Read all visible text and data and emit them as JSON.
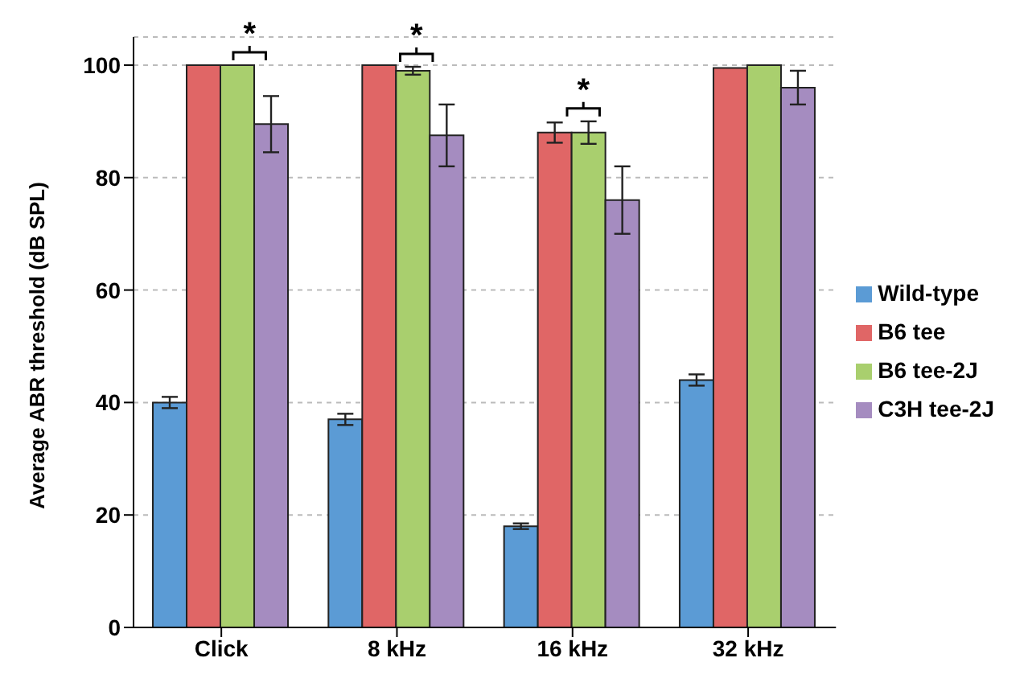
{
  "chart_data": {
    "type": "bar",
    "ylabel": "Average ABR threshold (dB SPL)",
    "categories": [
      "Click",
      "8 kHz",
      "16 kHz",
      "32 kHz"
    ],
    "series": [
      {
        "name": "Wild-type",
        "color": "#5b9bd5",
        "values": [
          40,
          37,
          18,
          44
        ],
        "errors": [
          1,
          1,
          0.5,
          1
        ]
      },
      {
        "name": "B6 tee",
        "color": "#e06666",
        "values": [
          100,
          100,
          88,
          99.5
        ],
        "errors": [
          null,
          null,
          1.8,
          null
        ]
      },
      {
        "name": "B6 tee-2J",
        "color": "#a9cf6e",
        "values": [
          100,
          99,
          88,
          100
        ],
        "errors": [
          null,
          0.7,
          2,
          null
        ]
      },
      {
        "name": "C3H tee-2J",
        "color": "#a58cc0",
        "values": [
          89.5,
          87.5,
          76,
          96
        ],
        "errors": [
          5,
          5.5,
          6,
          3
        ]
      }
    ],
    "ylim": [
      0,
      105
    ],
    "yticks": [
      0,
      20,
      40,
      60,
      80,
      100
    ],
    "grid": "y",
    "legend": "right",
    "annotations": [
      "*",
      "*",
      "*"
    ]
  }
}
